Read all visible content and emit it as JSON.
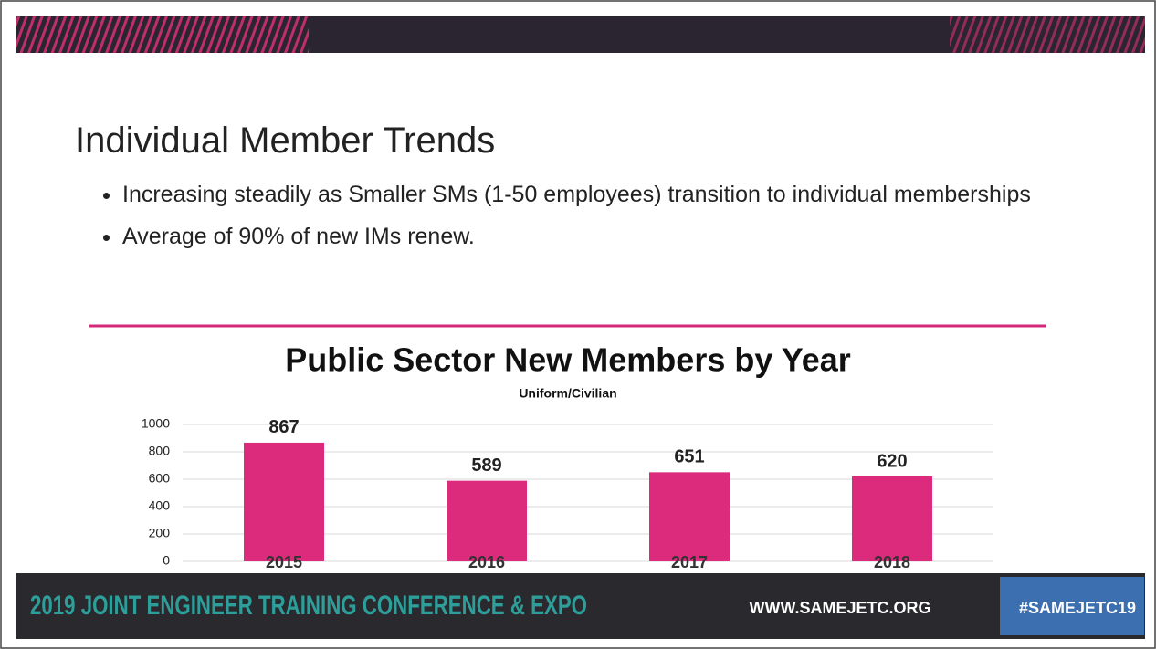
{
  "slide": {
    "title": "Individual Member Trends",
    "bullets": [
      "Increasing steadily as Smaller SMs (1-50 employees) transition to individual memberships",
      "Average of 90% of new IMs renew."
    ],
    "footer": {
      "event": "2019 JOINT ENGINEER TRAINING CONFERENCE & EXPO",
      "website": "WWW.SAMEJETC.ORG",
      "hashtag": "#SAMEJETC19"
    }
  },
  "chart_data": {
    "type": "bar",
    "title": "Public Sector New Members by Year",
    "subtitle": "Uniform/Civilian",
    "categories": [
      "2015",
      "2016",
      "2017",
      "2018"
    ],
    "values": [
      867,
      589,
      651,
      620
    ],
    "color": "#dc2a7c",
    "ylim": [
      0,
      1000
    ],
    "yticks": [
      0,
      200,
      400,
      600,
      800,
      1000
    ],
    "grid": true
  }
}
